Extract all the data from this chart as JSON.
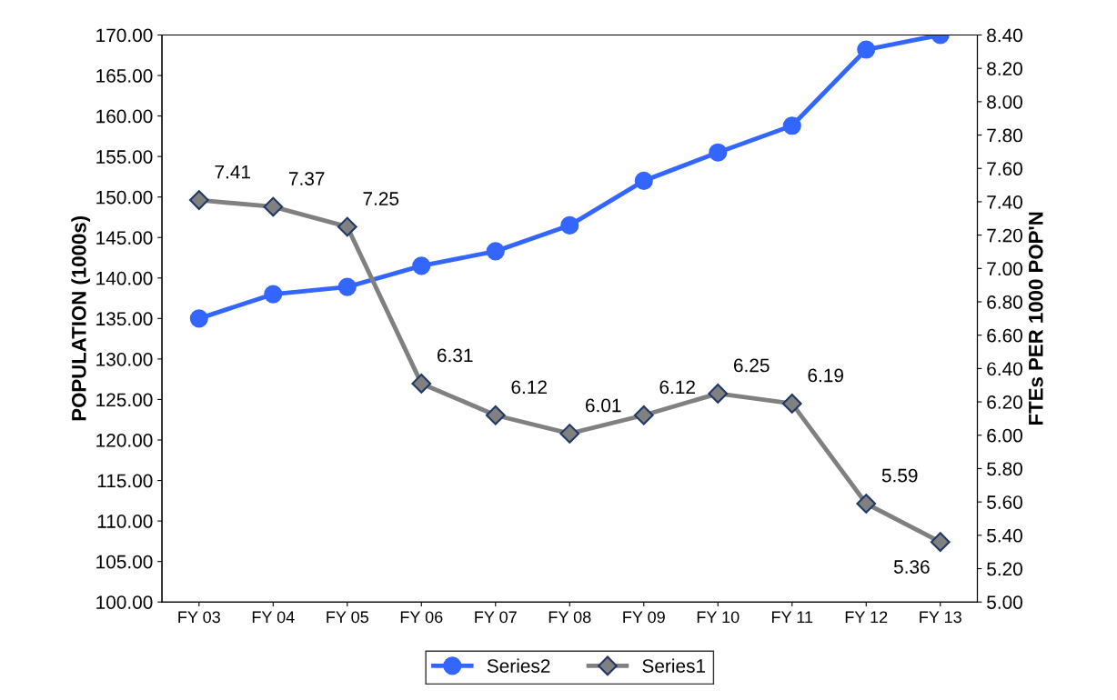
{
  "chart_data": {
    "type": "line",
    "categories": [
      "FY 03",
      "FY 04",
      "FY 05",
      "FY 06",
      "FY 07",
      "FY 08",
      "FY 09",
      "FY 10",
      "FY 11",
      "FY 12",
      "FY 13"
    ],
    "series": [
      {
        "name": "Series2",
        "color": "#3366ff",
        "marker": "circle",
        "values": [
          135.0,
          138.0,
          138.9,
          141.5,
          143.3,
          146.5,
          152.0,
          155.5,
          158.8,
          168.2,
          170.0
        ]
      },
      {
        "name": "Series1",
        "color": "#808080",
        "marker": "diamond",
        "axis": "y2",
        "data_labels": true,
        "values": [
          7.41,
          7.37,
          7.25,
          6.31,
          6.12,
          6.01,
          6.12,
          6.25,
          6.19,
          5.59,
          5.36
        ]
      }
    ],
    "ylabel": "POPULATION (1000s)",
    "y2label": "FTEs PER 1000 POP'N",
    "ylim": [
      100,
      170
    ],
    "yticks": [
      {
        "value": 100,
        "label": "100.00"
      },
      {
        "value": 105,
        "label": "105.00"
      },
      {
        "value": 110,
        "label": "110.00"
      },
      {
        "value": 115,
        "label": "115.00"
      },
      {
        "value": 120,
        "label": "120.00"
      },
      {
        "value": 125,
        "label": "125.00"
      },
      {
        "value": 130,
        "label": "130.00"
      },
      {
        "value": 135,
        "label": "135.00"
      },
      {
        "value": 140,
        "label": "140.00"
      },
      {
        "value": 145,
        "label": "145.00"
      },
      {
        "value": 150,
        "label": "150.00"
      },
      {
        "value": 155,
        "label": "155.00"
      },
      {
        "value": 160,
        "label": "160.00"
      },
      {
        "value": 165,
        "label": "165.00"
      },
      {
        "value": 170,
        "label": "170.00"
      }
    ],
    "y2lim": [
      5.0,
      8.4
    ],
    "y2ticks": [
      {
        "value": 5.0,
        "label": "5.00"
      },
      {
        "value": 5.2,
        "label": "5.20"
      },
      {
        "value": 5.4,
        "label": "5.40"
      },
      {
        "value": 5.6,
        "label": "5.60"
      },
      {
        "value": 5.8,
        "label": "5.80"
      },
      {
        "value": 6.0,
        "label": "6.00"
      },
      {
        "value": 6.2,
        "label": "6.20"
      },
      {
        "value": 6.4,
        "label": "6.40"
      },
      {
        "value": 6.6,
        "label": "6.60"
      },
      {
        "value": 6.8,
        "label": "6.80"
      },
      {
        "value": 7.0,
        "label": "7.00"
      },
      {
        "value": 7.2,
        "label": "7.20"
      },
      {
        "value": 7.4,
        "label": "7.40"
      },
      {
        "value": 7.6,
        "label": "7.60"
      },
      {
        "value": 7.8,
        "label": "7.80"
      },
      {
        "value": 8.0,
        "label": "8.00"
      },
      {
        "value": 8.2,
        "label": "8.20"
      },
      {
        "value": 8.4,
        "label": "8.40"
      }
    ],
    "grid": false,
    "legend": "bottom",
    "line_style": "solid"
  }
}
